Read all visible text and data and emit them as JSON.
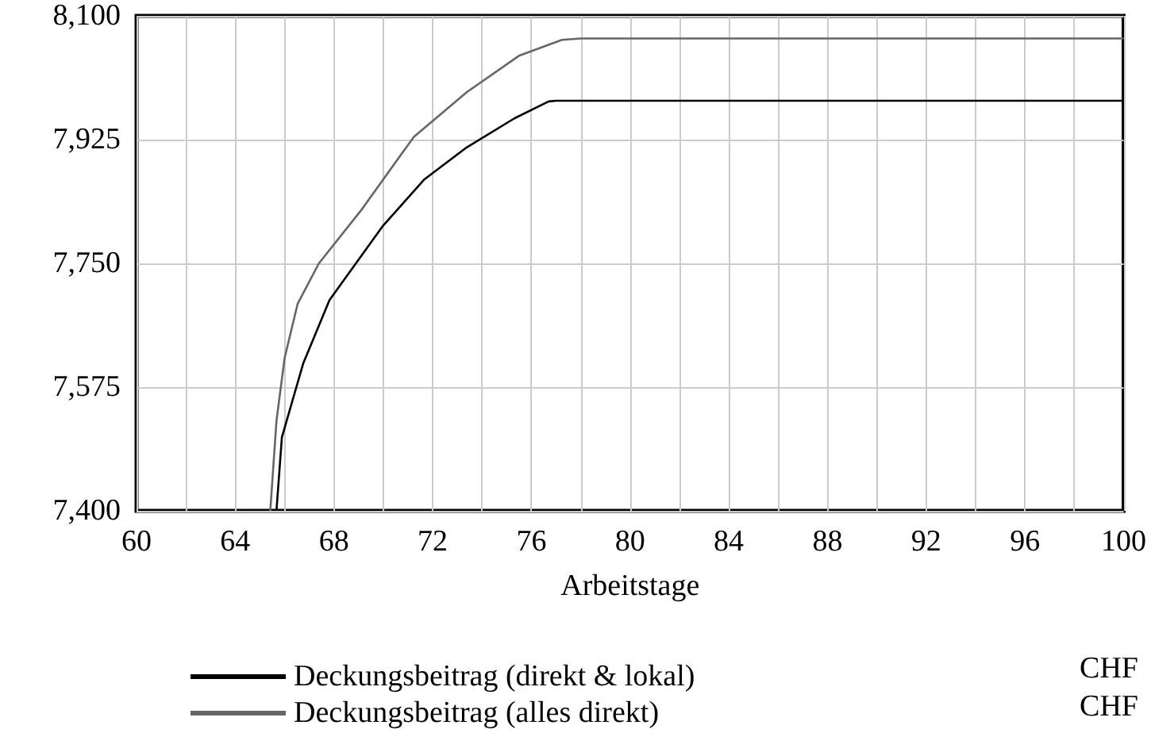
{
  "chart_data": {
    "type": "line",
    "xlabel": "Arbeitstage",
    "xlim": [
      60,
      100
    ],
    "xticks": [
      60,
      {
        "value": 62,
        "label": null
      },
      64,
      {
        "value": 66,
        "label": null
      },
      68,
      {
        "value": 70,
        "label": null
      },
      72,
      {
        "value": 74,
        "label": null
      },
      76,
      {
        "value": 78,
        "label": null
      },
      80,
      {
        "value": 82,
        "label": null
      },
      84,
      {
        "value": 86,
        "label": null
      },
      88,
      {
        "value": 90,
        "label": null
      },
      92,
      {
        "value": 94,
        "label": null
      },
      96,
      {
        "value": 98,
        "label": null
      },
      100
    ],
    "ylim": [
      7400,
      8100
    ],
    "yticks": [
      {
        "value": 7400,
        "label": "7,400"
      },
      {
        "value": 7575,
        "label": "7,575"
      },
      {
        "value": 7750,
        "label": "7,750"
      },
      {
        "value": 7925,
        "label": "7,925"
      },
      {
        "value": 8100,
        "label": "8,100"
      }
    ],
    "grid": true,
    "legend": "bottom",
    "marker": "none",
    "line_style": "solid",
    "annotations": [
      "CHF",
      "CHF"
    ],
    "series": [
      {
        "name": "Deckungsbeitrag (direkt & lokal)",
        "color": "#000000",
        "x": [
          65.67,
          65.89,
          66.75,
          67.82,
          69.96,
          71.67,
          73.38,
          75.31,
          76.7,
          77,
          100
        ],
        "values": [
          7400,
          7504,
          7608,
          7698,
          7802,
          7869,
          7914,
          7955,
          7979,
          7980,
          7980
        ]
      },
      {
        "name": "Deckungsbeitrag (alles direkt)",
        "color": "#666666",
        "x": [
          65.42,
          65.67,
          66.0,
          66.53,
          67.39,
          69.1,
          71.24,
          73.38,
          75.52,
          77.24,
          78,
          100
        ],
        "values": [
          7400,
          7527,
          7616,
          7693,
          7750,
          7825,
          7929,
          7992,
          8044,
          8066,
          8068,
          8068
        ]
      }
    ]
  }
}
